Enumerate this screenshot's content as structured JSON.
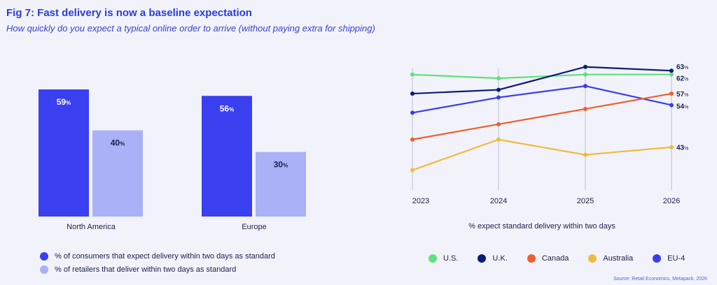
{
  "title": "Fig 7: Fast delivery is now a baseline expectation",
  "subtitle": "How quickly do you expect a typical online order to arrive (without paying extra for shipping)",
  "source": "Source: Retail Economics, Metapack, 2026",
  "chart_data": [
    {
      "type": "bar",
      "categories": [
        "North America",
        "Europe"
      ],
      "series": [
        {
          "name": "% of consumers that expect delivery within two days as standard",
          "values": [
            59,
            56
          ],
          "color": "#3a3ff0",
          "label_color": "#ffffff"
        },
        {
          "name": "% of retailers that deliver within two days as standard",
          "values": [
            40,
            30
          ],
          "color": "#aab1f7",
          "label_color": "#1a1f4a"
        }
      ],
      "value_labels": [
        [
          "59",
          "56"
        ],
        [
          "40",
          "30"
        ]
      ],
      "unit": "%",
      "ylim": [
        0,
        59
      ]
    },
    {
      "type": "line",
      "x": [
        "2023",
        "2024",
        "2025",
        "2026"
      ],
      "xlabel": "% expect standard delivery within two days",
      "ylim": [
        36,
        64.5
      ],
      "series": [
        {
          "name": "U.S.",
          "color": "#5fe07c",
          "values": [
            62,
            61,
            62,
            62
          ]
        },
        {
          "name": "U.K.",
          "color": "#0b1a7a",
          "values": [
            57,
            58,
            64,
            63
          ]
        },
        {
          "name": "Canada",
          "color": "#ee5f2f",
          "values": [
            45,
            49,
            53,
            57
          ]
        },
        {
          "name": "Australia",
          "color": "#f0bb3c",
          "values": [
            37,
            45,
            41,
            43
          ]
        },
        {
          "name": "EU-4",
          "color": "#3b3bf0",
          "values": [
            52,
            56,
            59,
            54
          ]
        }
      ],
      "end_labels": [
        "62",
        "63",
        "57",
        "43",
        "54"
      ],
      "unit": "%"
    }
  ]
}
